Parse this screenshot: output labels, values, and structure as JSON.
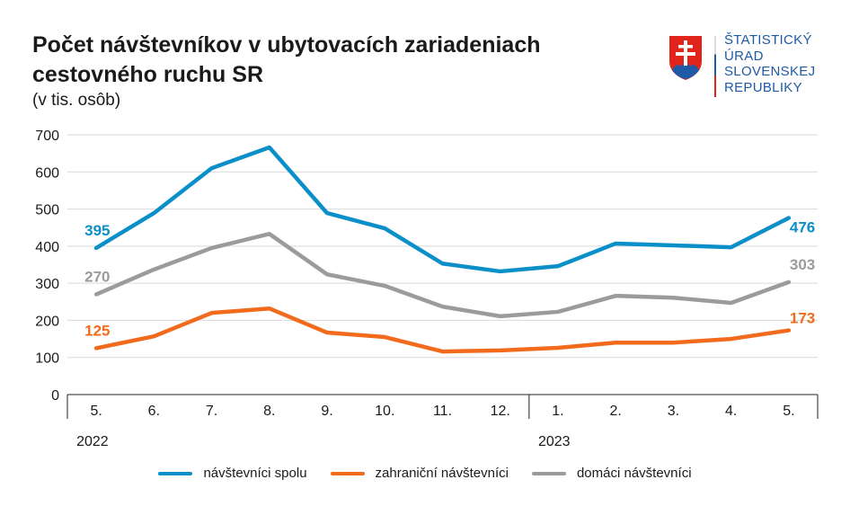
{
  "header": {
    "title": "Počet návštevníkov v ubytovacích zariadeniach cestovného ruchu SR",
    "subtitle": "(v tis. osôb)"
  },
  "logo": {
    "lines": [
      "ŠTATISTICKÝ",
      "ÚRAD",
      "SLOVENSKEJ",
      "REPUBLIKY"
    ],
    "colors": {
      "red": "#e1251b",
      "blue": "#1f5aa6"
    }
  },
  "chart_data": {
    "type": "line",
    "title": "Počet návštevníkov v ubytovacích zariadeniach cestovného ruchu SR",
    "subtitle": "(v tis. osôb)",
    "categories": [
      "5.",
      "6.",
      "7.",
      "8.",
      "9.",
      "10.",
      "11.",
      "12.",
      "1.",
      "2.",
      "3.",
      "4.",
      "5."
    ],
    "year_labels": [
      {
        "label": "2022",
        "start_index": 0
      },
      {
        "label": "2023",
        "start_index": 8
      }
    ],
    "ylim": [
      0,
      700
    ],
    "yticks": [
      0,
      100,
      200,
      300,
      400,
      500,
      600,
      700
    ],
    "grid": true,
    "legend_position": "bottom",
    "series": [
      {
        "name": "návštevníci spolu",
        "color": "#0a8fc8",
        "values": [
          395,
          489,
          610,
          666,
          489,
          448,
          353,
          332,
          346,
          407,
          402,
          397,
          476
        ],
        "end_labels": [
          "395",
          "476"
        ]
      },
      {
        "name": "zahraniční návštevníci",
        "color": "#f26b1d",
        "values": [
          125,
          157,
          220,
          232,
          167,
          155,
          116,
          119,
          126,
          140,
          140,
          150,
          173
        ],
        "end_labels": [
          "125",
          "173"
        ]
      },
      {
        "name": "domáci návštevníci",
        "color": "#9b9b9b",
        "values": [
          270,
          337,
          395,
          433,
          324,
          293,
          237,
          211,
          223,
          266,
          261,
          247,
          303
        ],
        "end_labels": [
          "270",
          "303"
        ]
      }
    ]
  }
}
